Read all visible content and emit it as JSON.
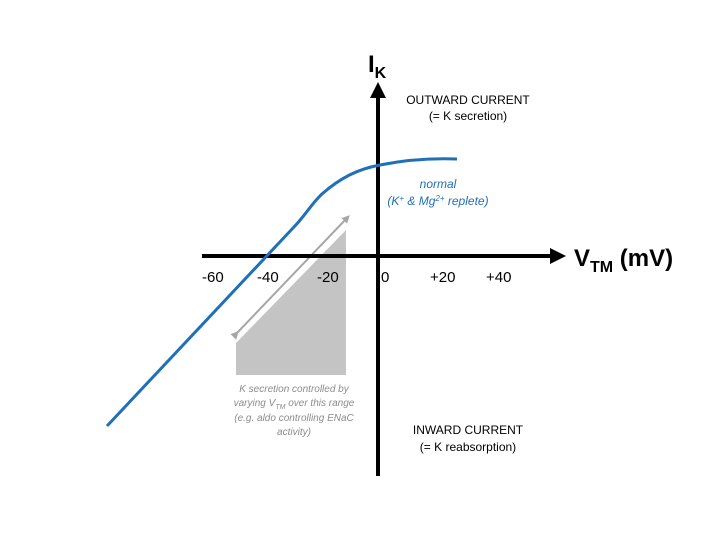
{
  "colors": {
    "axis": "#000000",
    "curve": "#1f6fb9",
    "shade": "#c4c4c4",
    "arrow": "#a6a6a6",
    "note": "#8c8c8c"
  },
  "axes": {
    "y_label_main": "I",
    "y_label_sub": "K",
    "x_label_main": "V",
    "x_label_sub": "TM",
    "x_label_unit": " (mV)",
    "x_ticks": [
      "-60",
      "-40",
      "-20",
      "0",
      "+20",
      "+40"
    ]
  },
  "quadrants": {
    "outward_title": "OUTWARD CURRENT",
    "outward_sub": "(= K secretion)",
    "inward_title": "INWARD CURRENT",
    "inward_sub": "(= K reabsorption)"
  },
  "curve_label": {
    "line1": "normal",
    "line2_k": "(K",
    "line2_k_sup": "+",
    "line2_mid": " & Mg",
    "line2_mg_sup": "2+",
    "line2_end": " replete)"
  },
  "note": {
    "line1": "K secretion controlled by",
    "line2_a": "varying V",
    "line2_sub": "TM",
    "line2_b": " over this range",
    "line3": "(e.g. aldo controlling ENaC",
    "line4": "activity)"
  }
}
